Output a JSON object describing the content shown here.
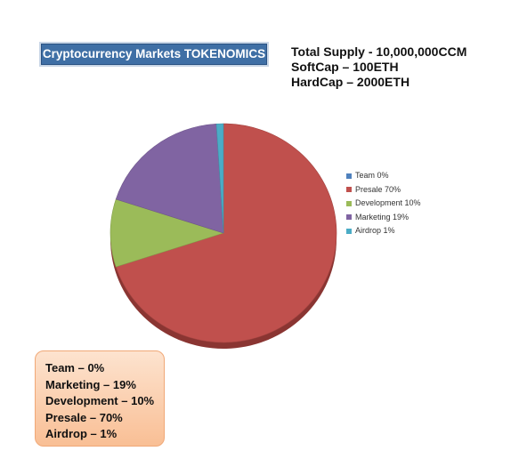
{
  "title": "Cryptocurrency Markets TOKENOMICS",
  "supply_info": [
    "Total Supply - 10,000,000CCM",
    "SoftCap – 100ETH",
    "HardCap – 2000ETH"
  ],
  "summary": [
    "Team – 0%",
    "Marketing – 19%",
    "Development – 10%",
    "Presale – 70%",
    "Airdrop – 1%"
  ],
  "chart_data": {
    "type": "pie",
    "title": "",
    "legend_position": "right",
    "slices": [
      {
        "label": "Team 0%",
        "value": 0,
        "color": "#4f81bd"
      },
      {
        "label": "Presale 70%",
        "value": 70,
        "color": "#c0504d"
      },
      {
        "label": "Development 10%",
        "value": 10,
        "color": "#9bbb59"
      },
      {
        "label": "Marketing 19%",
        "value": 19,
        "color": "#8064a2"
      },
      {
        "label": "Airdrop 1%",
        "value": 1,
        "color": "#4bacc6"
      }
    ]
  }
}
